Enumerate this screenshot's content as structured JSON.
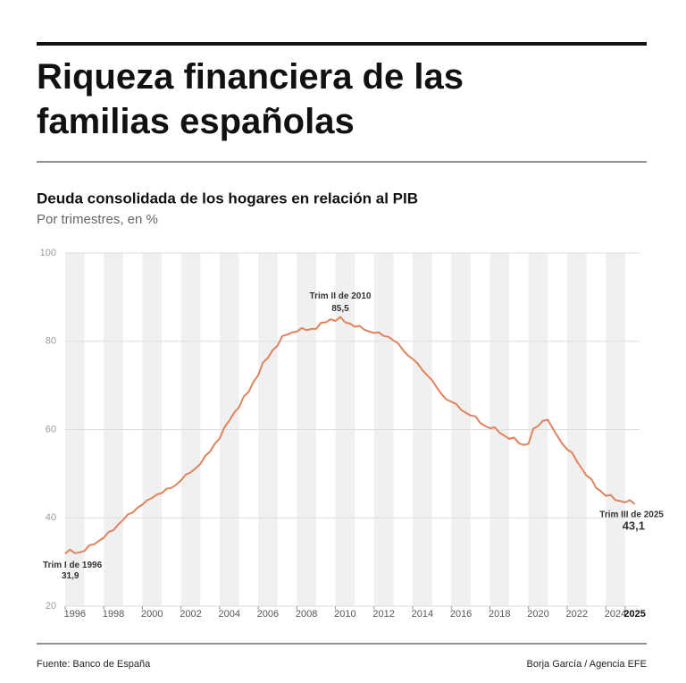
{
  "header": {
    "title": "Riqueza financiera de las familias españolas"
  },
  "chart_data": {
    "type": "line",
    "title": "Deuda consolidada de los hogares en relación al PIB",
    "subtitle": "Por trimestres, en %",
    "color": "#e0835c",
    "x": [
      1996,
      1996.25,
      1996.5,
      1996.75,
      1997,
      1997.25,
      1997.5,
      1997.75,
      1998,
      1998.25,
      1998.5,
      1998.75,
      1999,
      1999.25,
      1999.5,
      1999.75,
      2000,
      2000.25,
      2000.5,
      2000.75,
      2001,
      2001.25,
      2001.5,
      2001.75,
      2002,
      2002.25,
      2002.5,
      2002.75,
      2003,
      2003.25,
      2003.5,
      2003.75,
      2004,
      2004.25,
      2004.5,
      2004.75,
      2005,
      2005.25,
      2005.5,
      2005.75,
      2006,
      2006.25,
      2006.5,
      2006.75,
      2007,
      2007.25,
      2007.5,
      2007.75,
      2008,
      2008.25,
      2008.5,
      2008.75,
      2009,
      2009.25,
      2009.5,
      2009.75,
      2010,
      2010.25,
      2010.5,
      2010.75,
      2011,
      2011.25,
      2011.5,
      2011.75,
      2012,
      2012.25,
      2012.5,
      2012.75,
      2013,
      2013.25,
      2013.5,
      2013.75,
      2014,
      2014.25,
      2014.5,
      2014.75,
      2015,
      2015.25,
      2015.5,
      2015.75,
      2016,
      2016.25,
      2016.5,
      2016.75,
      2017,
      2017.25,
      2017.5,
      2017.75,
      2018,
      2018.25,
      2018.5,
      2018.75,
      2019,
      2019.25,
      2019.5,
      2019.75,
      2020,
      2020.25,
      2020.5,
      2020.75,
      2021,
      2021.25,
      2021.5,
      2021.75,
      2022,
      2022.25,
      2022.5,
      2022.75,
      2023,
      2023.25,
      2023.5,
      2023.75,
      2024,
      2024.25,
      2024.5,
      2024.75,
      2025,
      2025.25,
      2025.5
    ],
    "values": [
      31.9,
      32.8,
      32,
      32.2,
      32.5,
      33.8,
      34,
      34.8,
      35.5,
      36.8,
      37.2,
      38.5,
      39.5,
      40.8,
      41.2,
      42.3,
      43,
      44,
      44.5,
      45.3,
      45.6,
      46.6,
      46.8,
      47.5,
      48.5,
      49.8,
      50.3,
      51.2,
      52.2,
      54,
      55,
      56.8,
      58,
      60.5,
      62,
      63.8,
      65,
      67.5,
      68.5,
      70.8,
      72.3,
      75.2,
      76.2,
      78,
      79,
      81.2,
      81.5,
      82,
      82.2,
      83,
      82.5,
      82.8,
      82.8,
      84.2,
      84.3,
      85,
      84.6,
      85.5,
      84.3,
      84,
      83.3,
      83.5,
      82.6,
      82.2,
      81.9,
      82,
      81.2,
      81,
      80.2,
      79.5,
      78,
      76.8,
      76,
      75,
      73.5,
      72.3,
      71.2,
      69.5,
      68,
      66.8,
      66.3,
      65.8,
      64.5,
      63.8,
      63.2,
      63,
      61.5,
      60.8,
      60.3,
      60.5,
      59.3,
      58.6,
      57.9,
      58.2,
      56.9,
      56.5,
      56.8,
      60.2,
      60.8,
      62,
      62.2,
      60.3,
      58.5,
      56.8,
      55.5,
      54.8,
      52.8,
      51.2,
      49.6,
      48.8,
      46.8,
      46,
      45,
      45.2,
      44,
      43.8,
      43.5,
      44,
      43.1
    ],
    "value_labels": [
      "31,9",
      null,
      null,
      null,
      null,
      null,
      null,
      null,
      null,
      null,
      null,
      null,
      null,
      null,
      null,
      null,
      null,
      null,
      null,
      null,
      null,
      null,
      null,
      null,
      null,
      null,
      null,
      null,
      null,
      null,
      null,
      null,
      null,
      null,
      null,
      null,
      null,
      null,
      null,
      null,
      null,
      null,
      null,
      null,
      null,
      null,
      null,
      null,
      null,
      null,
      null,
      null,
      null,
      null,
      null,
      null,
      null,
      "85,5",
      null,
      null,
      null,
      null,
      null,
      null,
      null,
      null,
      null,
      null,
      null,
      null,
      null,
      null,
      null,
      null,
      null,
      null,
      null,
      null,
      null,
      null,
      null,
      null,
      null,
      null,
      null,
      null,
      null,
      null,
      null,
      null,
      null,
      null,
      null,
      null,
      null,
      null,
      null,
      null,
      null,
      null,
      null,
      null,
      null,
      null,
      null,
      null,
      null,
      null,
      null,
      null,
      null,
      null,
      null,
      null,
      null,
      null,
      null,
      null,
      "43,1"
    ],
    "value_notes": [
      "Trim I de 1996",
      null,
      null,
      null,
      null,
      null,
      null,
      null,
      null,
      null,
      null,
      null,
      null,
      null,
      null,
      null,
      null,
      null,
      null,
      null,
      null,
      null,
      null,
      null,
      null,
      null,
      null,
      null,
      null,
      null,
      null,
      null,
      null,
      null,
      null,
      null,
      null,
      null,
      null,
      null,
      null,
      null,
      null,
      null,
      null,
      null,
      null,
      null,
      null,
      null,
      null,
      null,
      null,
      null,
      null,
      null,
      null,
      "Trim II de 2010",
      null,
      null,
      null,
      null,
      null,
      null,
      null,
      null,
      null,
      null,
      null,
      null,
      null,
      null,
      null,
      null,
      null,
      null,
      null,
      null,
      null,
      null,
      null,
      null,
      null,
      null,
      null,
      null,
      null,
      null,
      null,
      null,
      null,
      null,
      null,
      null,
      null,
      null,
      null,
      null,
      null,
      null,
      null,
      null,
      null,
      null,
      null,
      null,
      null,
      null,
      null,
      null,
      null,
      null,
      null,
      null,
      null,
      null,
      null,
      null,
      "Trim III de 2025"
    ],
    "xlim": [
      1996,
      2025.75
    ],
    "xticks": [
      1996,
      1998,
      2000,
      2002,
      2004,
      2006,
      2008,
      2010,
      2012,
      2014,
      2016,
      2018,
      2020,
      2022,
      2024,
      2025
    ],
    "ylim": [
      20,
      100
    ],
    "yticks": [
      20,
      40,
      60,
      80,
      100
    ],
    "grid": true
  },
  "footer": {
    "source": "Fuente: Banco de España",
    "credit": "Borja García / Agencia EFE"
  }
}
